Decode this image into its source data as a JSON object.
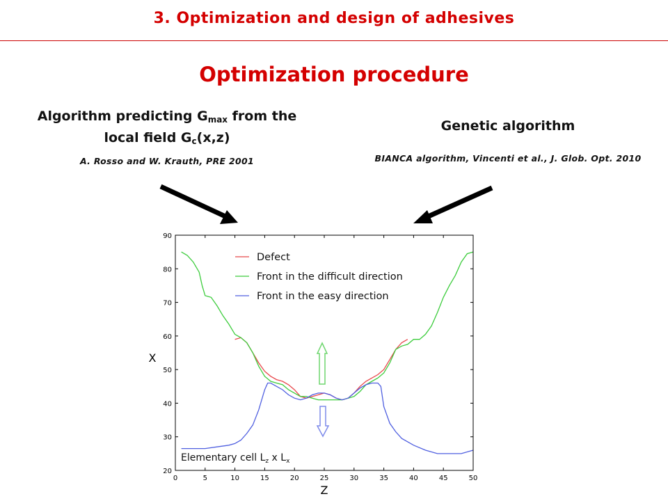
{
  "header": {
    "section_title": "3. Optimization and design of adhesives"
  },
  "slide": {
    "title": "Optimization procedure",
    "left": {
      "title_part1": "Algorithm predicting G",
      "title_sub1": "max",
      "title_part2": " from the",
      "title_line2": "local field G",
      "title_sub2": "c",
      "title_part3": "(x,z)",
      "citation": "A. Rosso and W. Krauth, PRE 2001"
    },
    "right": {
      "title": "Genetic algorithm",
      "citation": "BIANCA algorithm, Vincenti et al., J. Glob. Opt. 2010"
    },
    "annotation_prefix": "Elementary cell L",
    "annotation_sub1": "z",
    "annotation_mid": " x L",
    "annotation_sub2": "x"
  },
  "colors": {
    "accent": "#d40000",
    "defect": "#e8474b",
    "difficult": "#3ccc3c",
    "easy": "#4f5fe0"
  },
  "chart_data": {
    "type": "line",
    "xlabel": "Z",
    "ylabel": "X",
    "xlim": [
      0,
      50
    ],
    "ylim": [
      20,
      90
    ],
    "xticks": [
      0,
      5,
      10,
      15,
      20,
      25,
      30,
      35,
      40,
      45,
      50
    ],
    "yticks": [
      20,
      30,
      40,
      50,
      60,
      70,
      80,
      90
    ],
    "legend_position": "top",
    "series": [
      {
        "name": "Defect",
        "color": "#e8474b",
        "x": [
          10,
          11,
          12,
          13,
          14,
          15,
          16,
          17,
          18,
          19,
          20,
          21,
          22,
          23,
          24,
          25,
          26,
          27,
          28,
          29,
          30,
          31,
          32,
          33,
          34,
          35,
          36,
          37,
          38,
          39
        ],
        "y": [
          59,
          59.5,
          58,
          55,
          52,
          49.5,
          48,
          47,
          46.5,
          45.5,
          44,
          42,
          41.5,
          42,
          42.5,
          43,
          42.5,
          41.5,
          41,
          41.5,
          43,
          45,
          46.5,
          47.5,
          48.5,
          50,
          53,
          56,
          58,
          59
        ]
      },
      {
        "name": "Front in the difficult direction",
        "color": "#3ccc3c",
        "x": [
          1,
          2,
          3,
          4,
          4.5,
          5,
          6,
          7,
          8,
          9,
          10,
          11,
          12,
          13,
          14,
          15,
          16,
          17,
          18,
          19,
          20,
          21,
          22,
          23,
          24,
          25,
          26,
          27,
          28,
          29,
          30,
          31,
          32,
          33,
          34,
          35,
          36,
          37,
          38,
          39,
          40,
          41,
          42,
          43,
          44,
          45,
          46,
          47,
          48,
          49,
          50
        ],
        "y": [
          85,
          84,
          82,
          79,
          75,
          72,
          71.5,
          69,
          66,
          63.5,
          60.5,
          59.5,
          58,
          55,
          51,
          48,
          46.5,
          46,
          45.5,
          44,
          43,
          42,
          42,
          41.5,
          41,
          41,
          41,
          41,
          41,
          41.5,
          42,
          43.5,
          45.5,
          46.5,
          47.5,
          49,
          52,
          56,
          57,
          57.5,
          59,
          59,
          60.5,
          63,
          67,
          71.5,
          75,
          78,
          82,
          84.5,
          85
        ]
      },
      {
        "name": "Front in the easy direction",
        "color": "#4f5fe0",
        "x": [
          1,
          3,
          5,
          7,
          9,
          10,
          11,
          12,
          13,
          14,
          15,
          15.5,
          16,
          17,
          18,
          19,
          20,
          21,
          22,
          23,
          24,
          25,
          26,
          27,
          28,
          29,
          30,
          31,
          32,
          33,
          34,
          34.5,
          35,
          36,
          37,
          38,
          40,
          42,
          44,
          46,
          48,
          50
        ],
        "y": [
          26.5,
          26.5,
          26.5,
          27,
          27.5,
          28,
          29,
          31,
          33.5,
          38,
          44,
          46,
          46,
          45,
          44,
          42.5,
          41.5,
          41,
          41.5,
          42.5,
          43,
          43,
          42.5,
          41.5,
          41,
          41.5,
          43,
          44.5,
          45.5,
          46,
          46,
          45,
          39,
          34,
          31.5,
          29.5,
          27.5,
          26,
          25,
          25,
          25,
          26
        ]
      }
    ]
  }
}
